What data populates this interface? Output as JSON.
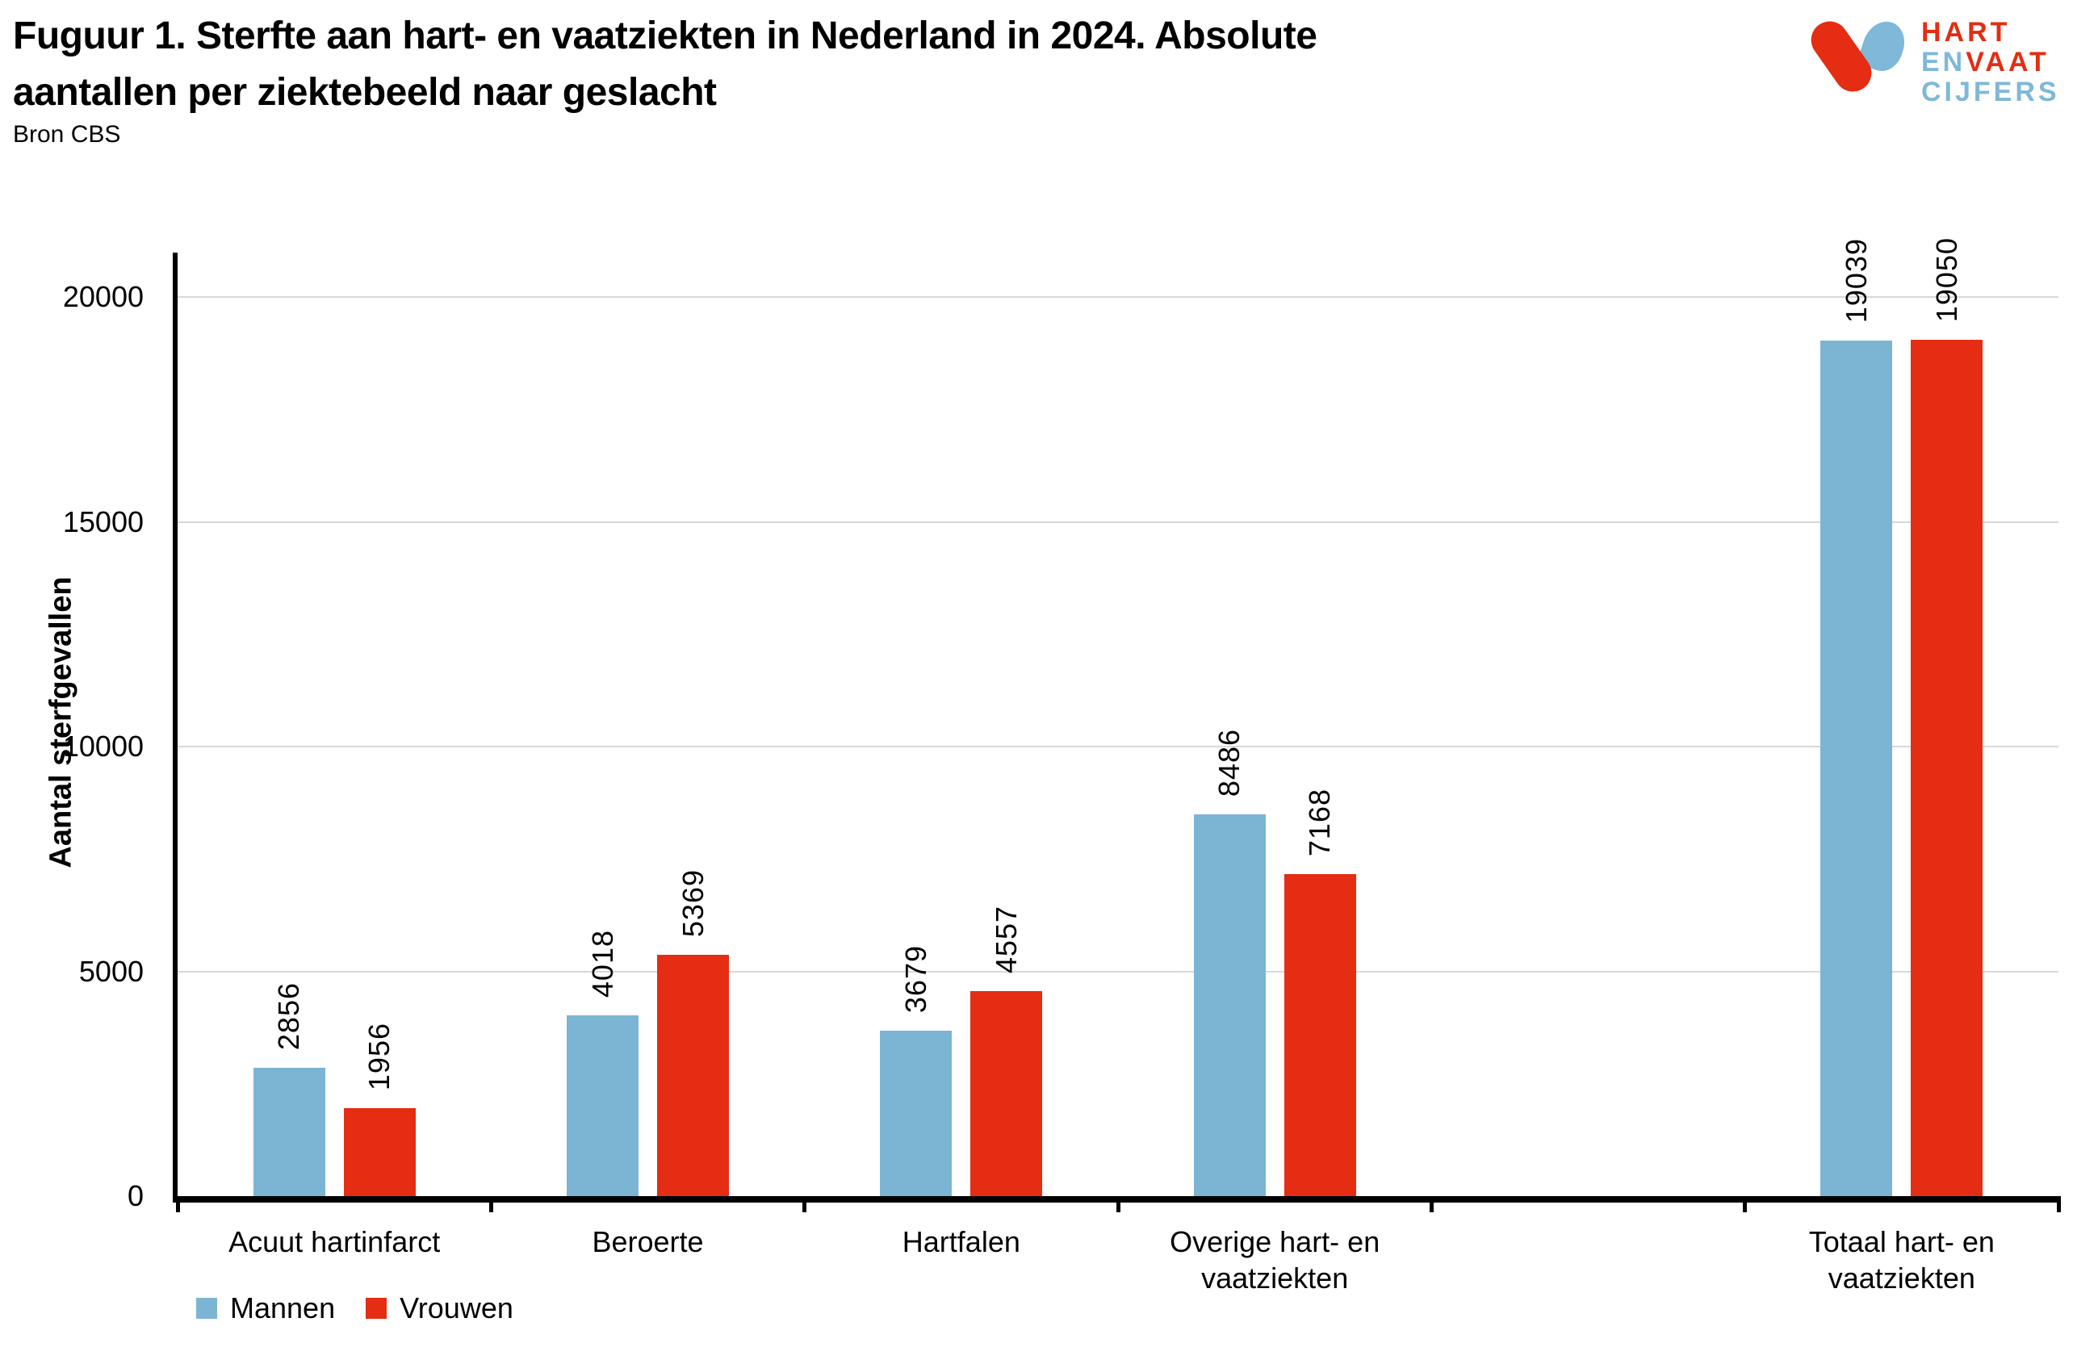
{
  "header": {
    "title_line1": "Fuguur 1. Sterfte aan hart- en vaatziekten in Nederland in 2024. Absolute",
    "title_line2": "aantallen per ziektebeeld naar geslacht",
    "source": "Bron CBS"
  },
  "logo": {
    "word1": "HART",
    "word2": "EN",
    "word3": "VAAT",
    "word4": "CIJFERS",
    "red": "#E42D12",
    "blue": "#7FB8D8"
  },
  "chart_data": {
    "type": "bar",
    "title": "Fuguur 1. Sterfte aan hart- en vaatziekten in Nederland in 2024. Absolute aantallen per ziektebeeld naar geslacht",
    "subtitle": "Bron CBS",
    "xlabel": "",
    "ylabel": "Aantal sterfgevallen",
    "ylim": [
      0,
      21000
    ],
    "yticks": [
      0,
      5000,
      10000,
      15000,
      20000
    ],
    "grid": true,
    "legend_position": "bottom-left",
    "slots_total": 6,
    "categories": [
      "Acuut hartinfarct",
      "Beroerte",
      "Hartfalen",
      "Overige hart- en vaatziekten",
      "Totaal hart- en vaatziekten"
    ],
    "category_lines": [
      [
        "Acuut hartinfarct"
      ],
      [
        "Beroerte"
      ],
      [
        "Hartfalen"
      ],
      [
        "Overige hart- en",
        "vaatziekten"
      ],
      [
        "Totaal hart- en",
        "vaatziekten"
      ]
    ],
    "category_slots": [
      0,
      1,
      2,
      3,
      5
    ],
    "series": [
      {
        "name": "Mannen",
        "color": "#7CB4D4",
        "values": [
          2856,
          4018,
          3679,
          8486,
          19039
        ]
      },
      {
        "name": "Vrouwen",
        "color": "#E42D12",
        "values": [
          1956,
          5369,
          4557,
          7168,
          19050
        ]
      }
    ],
    "value_labels_rotated": true
  }
}
